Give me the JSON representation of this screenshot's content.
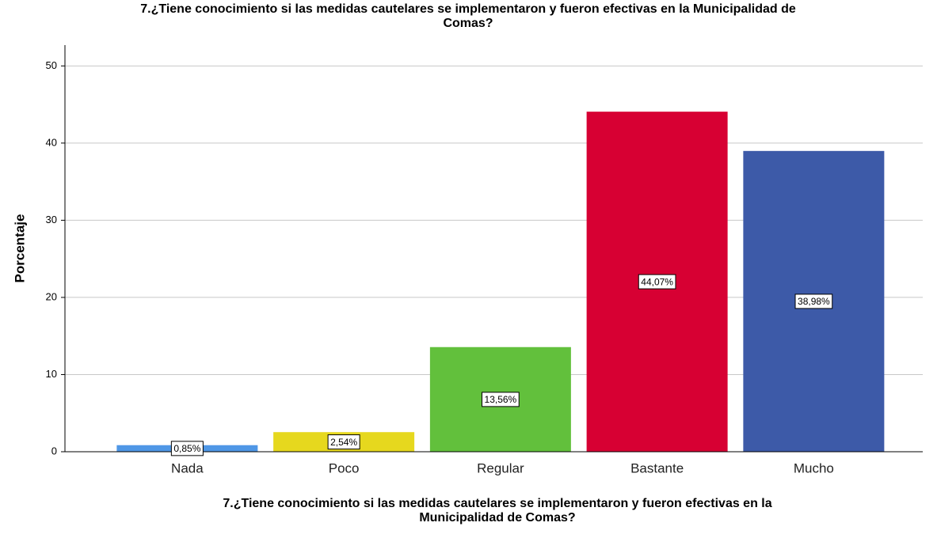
{
  "chart_data": {
    "type": "bar",
    "title": [
      "7.¿Tiene conocimiento si las medidas cautelares se implementaron y fueron efectivas en la Municipalidad de",
      "Comas?"
    ],
    "x_label": [
      "7.¿Tiene conocimiento si las medidas cautelares se implementaron y fueron efectivas en la",
      "Municipalidad de Comas?"
    ],
    "y_label": "Porcentaje",
    "categories": [
      "Nada",
      "Poco",
      "Regular",
      "Bastante",
      "Mucho"
    ],
    "values": [
      0.85,
      2.54,
      13.56,
      44.07,
      38.98
    ],
    "value_labels": [
      "0,85%",
      "2,54%",
      "13,56%",
      "44,07%",
      "38,98%"
    ],
    "colors": [
      "#4f97e6",
      "#e6d81e",
      "#62c03c",
      "#d70033",
      "#3d5aa8"
    ],
    "ylim": [
      0,
      52.7
    ],
    "yticks": [
      0,
      10,
      20,
      30,
      40,
      50
    ],
    "grid": true
  }
}
